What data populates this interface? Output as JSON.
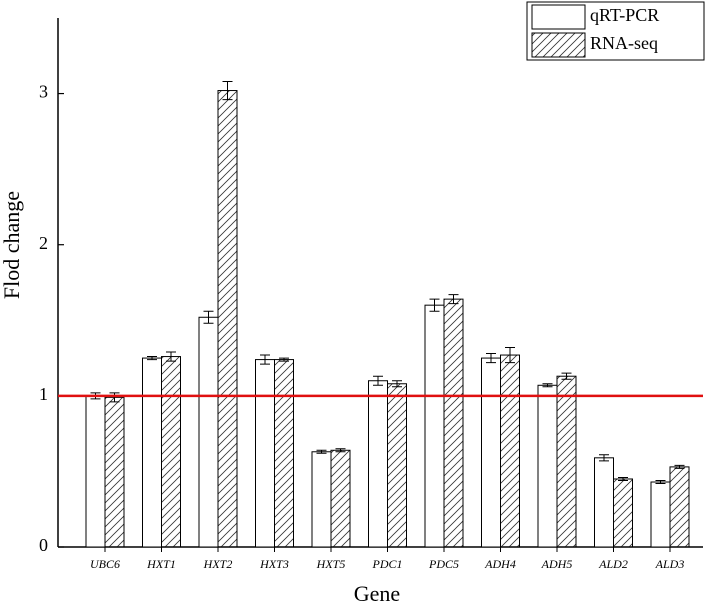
{
  "chart_data": {
    "type": "bar",
    "x_label": "Gene",
    "y_label": "Flod change",
    "categories": [
      "UBC6",
      "HXT1",
      "HXT2",
      "HXT3",
      "HXT5",
      "PDC1",
      "PDC5",
      "ADH4",
      "ADH5",
      "ALD2",
      "ALD3"
    ],
    "series": [
      {
        "name": "qRT-PCR",
        "color": "#ffffff",
        "hatch": false,
        "values": [
          1.0,
          1.25,
          1.52,
          1.24,
          0.63,
          1.1,
          1.6,
          1.25,
          1.07,
          0.59,
          0.43
        ],
        "errors": [
          0.02,
          0.01,
          0.04,
          0.03,
          0.01,
          0.03,
          0.04,
          0.03,
          0.01,
          0.02,
          0.01
        ]
      },
      {
        "name": "RNA-seq",
        "color": "#ffffff",
        "hatch": true,
        "values": [
          0.99,
          1.26,
          3.02,
          1.24,
          0.64,
          1.08,
          1.64,
          1.27,
          1.13,
          0.45,
          0.53
        ],
        "errors": [
          0.03,
          0.03,
          0.06,
          0.01,
          0.01,
          0.02,
          0.03,
          0.05,
          0.02,
          0.01,
          0.01
        ]
      }
    ],
    "ylim": [
      0,
      3.5
    ],
    "yticks": [
      0,
      1,
      2,
      3
    ],
    "reference_line": {
      "value": 1,
      "color": "#e01010"
    },
    "legend": "top-right",
    "grid": false
  }
}
